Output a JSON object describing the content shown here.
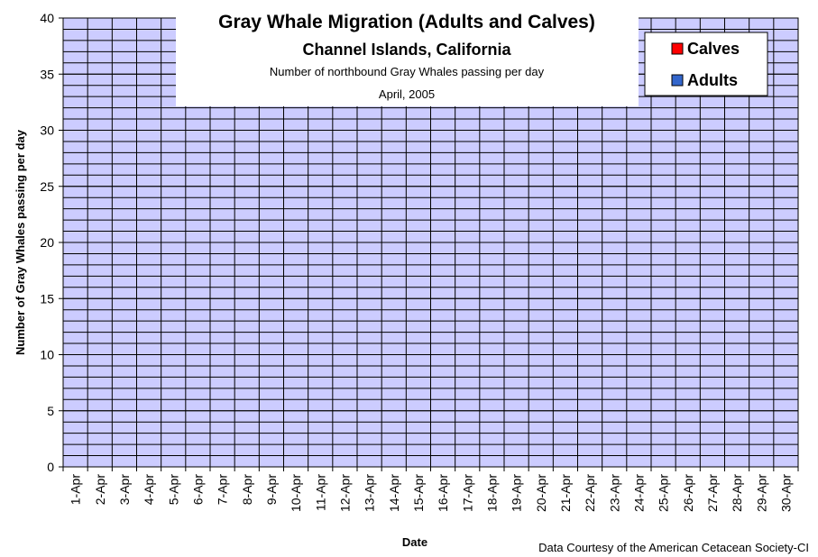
{
  "chart_data": {
    "type": "stacked_bar",
    "title": "Gray Whale Migration (Adults and Calves)",
    "subtitles": [
      "Channel Islands, California",
      "Number of northbound Gray Whales passing per day",
      "April, 2005"
    ],
    "x_label": "Date",
    "y_label": "Number of Gray Whales passing per day",
    "source": "Data Courtesy of the American Cetacean Society-CI",
    "categories": [
      "1-Apr",
      "2-Apr",
      "3-Apr",
      "4-Apr",
      "5-Apr",
      "6-Apr",
      "7-Apr",
      "8-Apr",
      "9-Apr",
      "10-Apr",
      "11-Apr",
      "12-Apr",
      "13-Apr",
      "14-Apr",
      "15-Apr",
      "16-Apr",
      "17-Apr",
      "18-Apr",
      "19-Apr",
      "20-Apr",
      "21-Apr",
      "22-Apr",
      "23-Apr",
      "24-Apr",
      "25-Apr",
      "26-Apr",
      "27-Apr",
      "28-Apr",
      "29-Apr",
      "30-Apr"
    ],
    "series": [
      {
        "name": "Calves",
        "color": "#ff0000",
        "values": [
          0,
          0,
          0,
          0,
          0,
          0,
          0,
          0,
          0,
          0,
          0,
          0,
          0,
          0,
          0,
          0,
          0,
          0,
          0,
          0,
          0,
          0,
          0,
          0,
          0,
          0,
          0,
          0,
          0,
          0
        ]
      },
      {
        "name": "Adults",
        "color": "#3366cc",
        "values": [
          0,
          0,
          0,
          0,
          0,
          0,
          0,
          0,
          0,
          0,
          0,
          0,
          0,
          0,
          0,
          0,
          0,
          0,
          0,
          0,
          0,
          0,
          0,
          0,
          0,
          0,
          0,
          0,
          0,
          0
        ]
      }
    ],
    "ylim": [
      0,
      40
    ],
    "yticks": [
      0,
      5,
      10,
      15,
      20,
      25,
      30,
      35,
      40
    ],
    "grid": true,
    "minor_grid_step": 1,
    "legend": "top-right",
    "plot_color": "#ccccff"
  }
}
